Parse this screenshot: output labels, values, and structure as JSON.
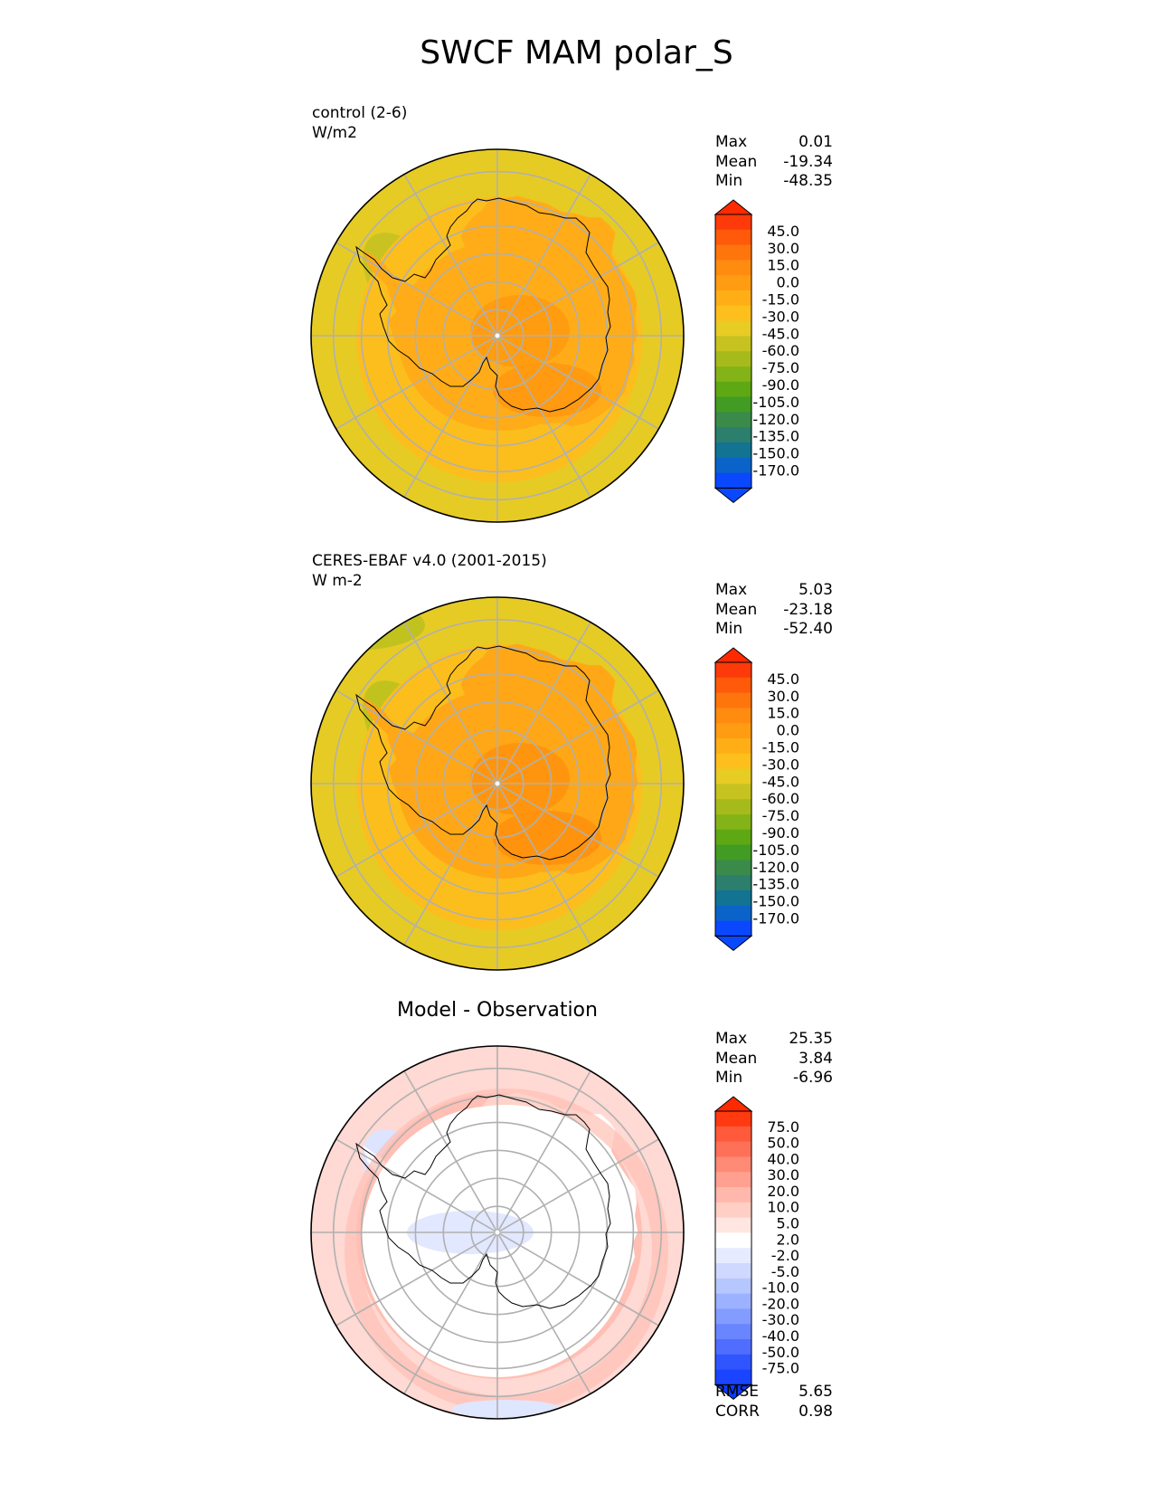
{
  "title": "SWCF MAM polar_S",
  "panels": [
    {
      "id": "control",
      "label_line1": "control (2-6)",
      "label_line2": "W/m2",
      "title": "",
      "stats": [
        {
          "name": "Max",
          "value": "0.01"
        },
        {
          "name": "Mean",
          "value": "-19.34"
        },
        {
          "name": "Min",
          "value": "-48.35"
        }
      ],
      "colorbar": {
        "ticks": [
          "45.0",
          "30.0",
          "15.0",
          "0.0",
          "-15.0",
          "-30.0",
          "-45.0",
          "-60.0",
          "-75.0",
          "-90.0",
          "-105.0",
          "-120.0",
          "-135.0",
          "-150.0",
          "-170.0"
        ],
        "colors": [
          "#ff3a0a",
          "#ff5a0a",
          "#ff750d",
          "#ff8b0f",
          "#ff9c12",
          "#ffae16",
          "#fdbf1c",
          "#e7cc24",
          "#c6c320",
          "#a6bb1b",
          "#84b317",
          "#5ea813",
          "#429b23",
          "#3a8a4a",
          "#2c7e6d",
          "#137393",
          "#0a63c8",
          "#0a48ff"
        ],
        "top_triangle_color": "#ff2a00",
        "bottom_triangle_color": "#0a48ff"
      },
      "colors": {
        "ocean": "#e6cb24",
        "ring": "#fbbe1d",
        "inner": "#ffac18",
        "core": "#ff9c10",
        "warm_patch": "#ff9610",
        "green_patch": "#c8c322"
      }
    },
    {
      "id": "obs",
      "label_line1": "CERES-EBAF v4.0 (2001-2015)",
      "label_line2": "W m-2",
      "title": "",
      "stats": [
        {
          "name": "Max",
          "value": "5.03"
        },
        {
          "name": "Mean",
          "value": "-23.18"
        },
        {
          "name": "Min",
          "value": "-52.40"
        }
      ],
      "colorbar": {
        "ticks": [
          "45.0",
          "30.0",
          "15.0",
          "0.0",
          "-15.0",
          "-30.0",
          "-45.0",
          "-60.0",
          "-75.0",
          "-90.0",
          "-105.0",
          "-120.0",
          "-135.0",
          "-150.0",
          "-170.0"
        ],
        "colors": [
          "#ff3a0a",
          "#ff5a0a",
          "#ff750d",
          "#ff8b0f",
          "#ff9c12",
          "#ffae16",
          "#fdbf1c",
          "#e7cc24",
          "#c6c320",
          "#a6bb1b",
          "#84b317",
          "#5ea813",
          "#429b23",
          "#3a8a4a",
          "#2c7e6d",
          "#137393",
          "#0a63c8",
          "#0a48ff"
        ],
        "top_triangle_color": "#ff2a00",
        "bottom_triangle_color": "#0a48ff"
      },
      "colors": {
        "ocean": "#e6cb24",
        "ring": "#fbbe1d",
        "inner": "#ffa716",
        "core": "#ff950e",
        "warm_patch": "#ff8f0d",
        "green_patch": "#c2c21f"
      }
    },
    {
      "id": "diff",
      "label_line1": "",
      "label_line2": "",
      "title": "Model - Observation",
      "stats": [
        {
          "name": "Max",
          "value": "25.35"
        },
        {
          "name": "Mean",
          "value": "3.84"
        },
        {
          "name": "Min",
          "value": "-6.96"
        }
      ],
      "colorbar": {
        "ticks": [
          "75.0",
          "50.0",
          "40.0",
          "30.0",
          "20.0",
          "10.0",
          "5.0",
          "2.0",
          "-2.0",
          "-5.0",
          "-10.0",
          "-20.0",
          "-30.0",
          "-40.0",
          "-50.0",
          "-75.0"
        ],
        "colors": [
          "#ff3a10",
          "#ff5a3a",
          "#ff7058",
          "#ff8a75",
          "#ffa090",
          "#ffb8ab",
          "#ffcfc6",
          "#ffe6e1",
          "#ffffff",
          "#e6ebff",
          "#cfd9ff",
          "#b6c6ff",
          "#9cb1ff",
          "#839cff",
          "#6986ff",
          "#4f6eff",
          "#3055ff",
          "#1a44ff"
        ],
        "top_triangle_color": "#ff2a00",
        "bottom_triangle_color": "#0a3cff"
      },
      "colors": {
        "ocean": "#ffd9d3",
        "ring": "#ffbfb4",
        "inner": "#ffffff",
        "core": "#ffffff",
        "warm_patch": "#ffb3a6",
        "green_patch": "#dde4ff"
      }
    }
  ],
  "bottom_stats": [
    {
      "name": "RMSE",
      "value": "5.65"
    },
    {
      "name": "CORR",
      "value": "0.98"
    }
  ]
}
